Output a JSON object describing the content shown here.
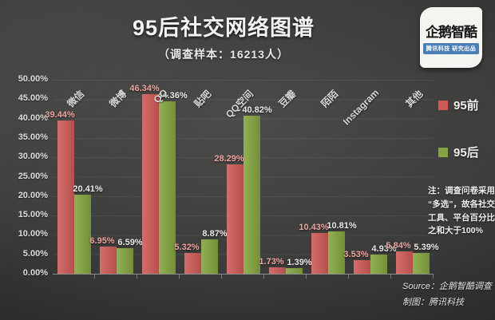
{
  "header": {
    "title": "95后社交网络图谱",
    "subtitle": "（调查样本：16213人）",
    "logo": {
      "name": "企鹅智酷",
      "tagline": "腾讯科技 研究出品"
    }
  },
  "legend": {
    "pre_label": "95前",
    "post_label": "95后"
  },
  "note": "注：调查问卷采用\n“多选”，故各社交\n工具、平台百分比\n之和大于100%",
  "source": {
    "line1": "Source：企鹅智酷调查",
    "line2": "制图：腾讯科技"
  },
  "colors": {
    "pre_bar": "#cd5a57",
    "post_bar": "#84a43f",
    "pre_value_label": "#efa5a1",
    "post_value_label": "#eceae7",
    "background_center": "#4b4b49",
    "background_edge": "#1f1f1e"
  },
  "chart_data": {
    "type": "bar",
    "title": "95后社交网络图谱",
    "subtitle": "（调查样本：16213人）",
    "categories": [
      "微信",
      "微博",
      "QQ",
      "贴吧",
      "QQ空间",
      "豆瓣",
      "陌陌",
      "Instagram",
      "其他"
    ],
    "series": [
      {
        "name": "95前",
        "color": "#cd5a57",
        "values": [
          39.44,
          6.95,
          46.34,
          5.32,
          28.29,
          1.73,
          10.43,
          3.53,
          5.84
        ]
      },
      {
        "name": "95后",
        "color": "#84a43f",
        "values": [
          20.41,
          6.59,
          44.36,
          8.87,
          40.82,
          1.39,
          10.81,
          4.93,
          5.39
        ]
      }
    ],
    "value_label_format": "0.00%",
    "ylim": [
      0,
      50
    ],
    "ytick_step": 5,
    "ytick_labels": [
      "50.00%",
      "45.00%",
      "40.00%",
      "35.00%",
      "30.00%",
      "25.00%",
      "20.00%",
      "15.00%",
      "10.00%",
      "5.00%",
      "0.00%"
    ],
    "grid": true,
    "legend_position": "right",
    "xlabel": "",
    "ylabel": ""
  }
}
